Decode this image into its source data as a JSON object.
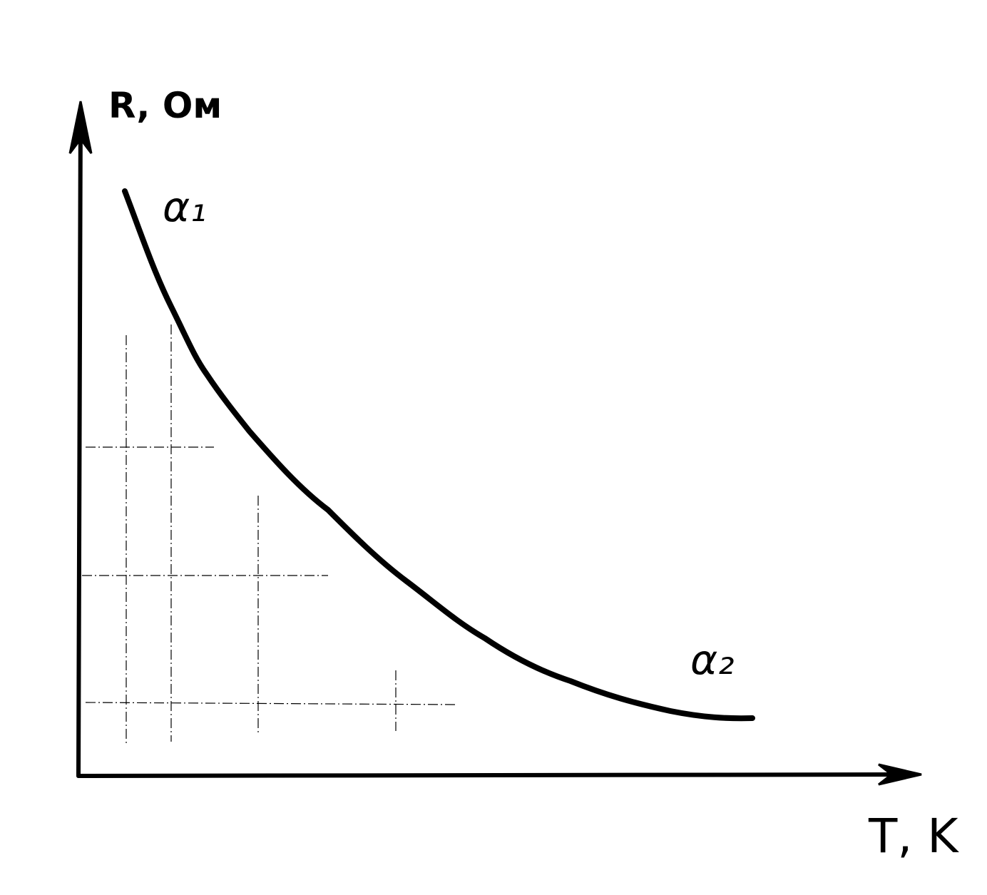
{
  "axes": {
    "y_label": "R, Ом",
    "x_label": "T, K"
  },
  "curve": {
    "start_label": "α₁",
    "end_label": "α₂"
  }
}
